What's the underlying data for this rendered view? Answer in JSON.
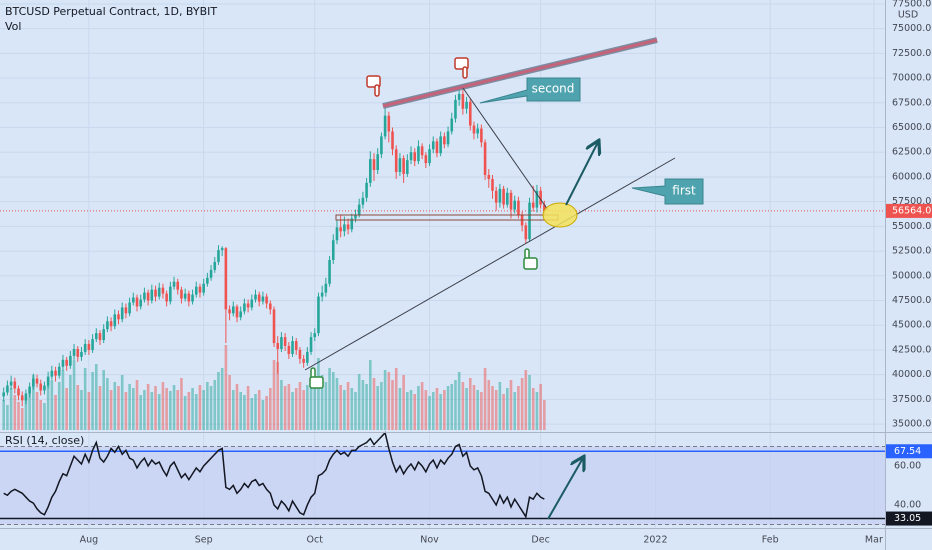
{
  "chart_data": {
    "type": "candlestick",
    "title": "BTCUSD Perpetual Contract, 1D, BYBIT",
    "unit": "USD",
    "up_color": "#26a69a",
    "down_color": "#ef5350",
    "x": [
      8,
      9,
      10,
      11,
      12,
      13,
      14,
      15,
      16,
      17,
      18,
      19,
      20,
      21,
      22,
      23,
      24,
      25,
      26,
      27,
      28,
      29,
      30,
      31,
      32,
      33,
      34,
      35,
      36,
      37,
      38,
      39,
      40,
      41,
      42,
      43,
      44,
      45,
      46,
      47,
      48,
      49,
      50,
      51,
      52,
      53,
      54,
      55,
      56,
      57,
      58,
      59,
      60,
      61,
      62,
      63,
      64,
      65,
      66,
      67,
      68,
      69,
      70,
      71,
      72,
      73,
      74,
      75,
      76,
      77,
      78,
      79,
      80,
      81,
      82,
      83,
      84,
      85,
      86,
      87,
      88,
      89,
      90,
      91,
      92,
      93,
      94,
      95,
      96,
      97,
      98,
      99,
      100,
      101,
      102,
      103,
      104,
      105,
      106,
      107,
      108,
      109,
      110,
      111,
      112,
      113,
      114,
      115,
      116,
      117,
      118,
      119,
      120,
      121,
      122,
      123,
      124,
      125,
      126,
      127,
      128,
      129,
      130,
      131,
      132,
      133,
      134,
      135,
      136,
      137,
      138,
      139,
      140,
      141,
      142,
      143,
      144,
      145,
      146,
      147,
      148,
      149,
      150,
      151,
      152,
      153,
      154
    ],
    "open": [
      37800,
      38200,
      38900,
      39300,
      38600,
      37900,
      37400,
      38100,
      38800,
      39600,
      39100,
      38400,
      38900,
      39800,
      40400,
      39900,
      40800,
      41500,
      40900,
      41900,
      42600,
      41800,
      42300,
      43100,
      42500,
      43600,
      44200,
      43500,
      44600,
      45400,
      44900,
      46100,
      45600,
      46800,
      46200,
      47300,
      47800,
      46900,
      47600,
      48300,
      47500,
      48600,
      47900,
      48800,
      48200,
      47400,
      48900,
      49400,
      48600,
      47700,
      48200,
      47400,
      48100,
      48900,
      48300,
      49200,
      49800,
      50600,
      51400,
      52600,
      52800,
      46600,
      46200,
      46900,
      45800,
      46400,
      47200,
      46800,
      47600,
      48100,
      47400,
      47900,
      47200,
      46600,
      43200,
      42600,
      43800,
      42900,
      42100,
      43400,
      42500,
      41600,
      41200,
      42300,
      43800,
      44200,
      47900,
      48300,
      49200,
      51600,
      53600,
      54900,
      54500,
      55200,
      54700,
      55800,
      56100,
      57200,
      57900,
      59400,
      61800,
      60700,
      62300,
      64100,
      66200,
      64600,
      62800,
      60500,
      61900,
      60300,
      61700,
      62500,
      61600,
      63100,
      62200,
      61400,
      62800,
      63600,
      62400,
      64100,
      63300,
      64600,
      65900,
      67800,
      68400,
      66900,
      67600,
      65200,
      64400,
      64900,
      63500,
      60200,
      59800,
      58600,
      57400,
      58800,
      57200,
      58400,
      56700,
      57600,
      56200,
      55100,
      53700,
      57400,
      56900,
      58600,
      57200
    ],
    "high": [
      38700,
      39400,
      39900,
      39700,
      38900,
      38300,
      38500,
      39200,
      40100,
      40000,
      39500,
      39300,
      40300,
      40900,
      40800,
      41200,
      42000,
      41800,
      42400,
      43100,
      42900,
      42800,
      43600,
      43500,
      44100,
      44700,
      44500,
      45100,
      45900,
      45800,
      46600,
      46500,
      47300,
      47200,
      47800,
      48300,
      48100,
      48100,
      48800,
      48600,
      49100,
      49000,
      49300,
      49200,
      48500,
      49400,
      49900,
      49700,
      48900,
      48700,
      48500,
      48600,
      49400,
      49200,
      49700,
      50300,
      51100,
      51900,
      53100,
      53000,
      52900,
      47000,
      47400,
      47100,
      46900,
      47700,
      47600,
      48100,
      48600,
      48400,
      48400,
      48200,
      47500,
      46900,
      43900,
      44300,
      44200,
      43300,
      43900,
      43700,
      42800,
      42000,
      42800,
      44300,
      44700,
      48300,
      49000,
      49800,
      52000,
      54200,
      55600,
      56200,
      56000,
      55800,
      56300,
      56700,
      57800,
      58500,
      59900,
      62600,
      62400,
      62900,
      64500,
      67000,
      66600,
      65000,
      63200,
      62400,
      62200,
      62300,
      63100,
      62900,
      63700,
      63400,
      62500,
      63300,
      64100,
      63900,
      64600,
      64500,
      65100,
      66500,
      68300,
      69000,
      68800,
      68100,
      67900,
      65600,
      65400,
      65300,
      63800,
      60800,
      60200,
      59000,
      59300,
      59100,
      58900,
      58700,
      58100,
      58000,
      56500,
      55400,
      57900,
      59100,
      59200,
      59000,
      57600
    ],
    "low": [
      37300,
      37900,
      38500,
      38100,
      37400,
      36800,
      37000,
      37700,
      38500,
      38700,
      37900,
      38000,
      38600,
      39500,
      39300,
      39600,
      40400,
      40400,
      40600,
      41500,
      41300,
      41400,
      42000,
      42000,
      42200,
      43300,
      43000,
      43200,
      44300,
      44400,
      44600,
      45100,
      45300,
      45700,
      45900,
      47000,
      46400,
      46600,
      47300,
      47000,
      47200,
      47400,
      47600,
      47700,
      46900,
      47100,
      48600,
      48100,
      47200,
      47400,
      46900,
      47100,
      47800,
      47800,
      48000,
      48900,
      49500,
      50300,
      51100,
      52000,
      43200,
      45500,
      45900,
      45300,
      45500,
      46100,
      46300,
      46500,
      47300,
      46900,
      47100,
      46700,
      46100,
      42800,
      40100,
      42300,
      42400,
      41600,
      41800,
      42000,
      41100,
      40700,
      40900,
      42000,
      43400,
      43900,
      47400,
      47900,
      48900,
      51200,
      53200,
      53900,
      54000,
      54200,
      54400,
      55400,
      55900,
      56800,
      57500,
      59000,
      59600,
      60300,
      61900,
      63800,
      63500,
      62200,
      59800,
      60100,
      59400,
      60000,
      61300,
      61100,
      61300,
      61800,
      60900,
      61100,
      62400,
      62000,
      62100,
      62900,
      63000,
      64300,
      65500,
      67200,
      66300,
      66400,
      64700,
      63800,
      63900,
      63000,
      59700,
      58900,
      57800,
      56600,
      56900,
      56800,
      56900,
      55800,
      56300,
      55800,
      54500,
      53300,
      53500,
      56500,
      56400,
      56800,
      56200
    ],
    "close": [
      38200,
      38900,
      39300,
      38600,
      37900,
      37400,
      38100,
      38800,
      39600,
      39100,
      38400,
      38900,
      39800,
      40400,
      39900,
      40800,
      41500,
      40900,
      41900,
      42600,
      41800,
      42300,
      43100,
      42500,
      43600,
      44200,
      43500,
      44600,
      45400,
      44900,
      46100,
      45600,
      46800,
      46200,
      47300,
      47800,
      46900,
      47600,
      48300,
      47500,
      48600,
      47900,
      48800,
      48200,
      47400,
      48900,
      49400,
      48600,
      47700,
      48200,
      47400,
      48100,
      48900,
      48300,
      49200,
      49800,
      50600,
      51400,
      52600,
      52800,
      46600,
      46200,
      46900,
      45800,
      46400,
      47200,
      46800,
      47600,
      48100,
      47400,
      47900,
      47200,
      46600,
      43200,
      42600,
      43800,
      42900,
      42100,
      43400,
      42500,
      41600,
      41200,
      42300,
      43800,
      44200,
      47900,
      48300,
      49200,
      51600,
      53600,
      54900,
      54500,
      55200,
      54700,
      55800,
      56100,
      57200,
      57900,
      59400,
      61800,
      60700,
      62300,
      64100,
      66200,
      64600,
      62800,
      60500,
      61900,
      60300,
      61700,
      62500,
      61600,
      63100,
      62200,
      61400,
      62800,
      63600,
      62400,
      64100,
      63300,
      64600,
      65900,
      67800,
      68400,
      66900,
      67600,
      65200,
      64400,
      64900,
      63500,
      60200,
      59800,
      58600,
      57400,
      58800,
      57200,
      58400,
      56700,
      57600,
      56200,
      55100,
      53700,
      57400,
      56900,
      58600,
      57200,
      56564
    ],
    "xlim": [
      7,
      246
    ],
    "xticks": [
      {
        "value": 31,
        "label": "Aug"
      },
      {
        "value": 62,
        "label": "Sep"
      },
      {
        "value": 92,
        "label": "Oct"
      },
      {
        "value": 123,
        "label": "Nov"
      },
      {
        "value": 153,
        "label": "Dec"
      },
      {
        "value": 184,
        "label": "2022"
      },
      {
        "value": 215,
        "label": "Feb"
      },
      {
        "value": 243,
        "label": "Mar"
      }
    ],
    "ylim": [
      34200,
      77900
    ],
    "yticks": [
      {
        "value": 35000,
        "label": "35000.0"
      },
      {
        "value": 37500,
        "label": "37500.0"
      },
      {
        "value": 40000,
        "label": "40000.0"
      },
      {
        "value": 42500,
        "label": "42500.0"
      },
      {
        "value": 45000,
        "label": "45000.0"
      },
      {
        "value": 47500,
        "label": "47500.0"
      },
      {
        "value": 50000,
        "label": "50000.0"
      },
      {
        "value": 52500,
        "label": "52500.0"
      },
      {
        "value": 55000,
        "label": "55000.0"
      },
      {
        "value": 57500,
        "label": "57500.0"
      },
      {
        "value": 60000,
        "label": "60000.0"
      },
      {
        "value": 62500,
        "label": "62500.0"
      },
      {
        "value": 65000,
        "label": "65000.0"
      },
      {
        "value": 67500,
        "label": "67500.0"
      },
      {
        "value": 70000,
        "label": "70000.0"
      },
      {
        "value": 72500,
        "label": "72500.0"
      },
      {
        "value": 75000,
        "label": "75000.0"
      },
      {
        "value": 77500,
        "label": "77500.0"
      }
    ],
    "grid": true,
    "last_price": {
      "value": 56564,
      "label": "56564.0"
    },
    "annotations": [
      "second",
      "first"
    ],
    "volume": {
      "name": "Vol",
      "values": [
        30,
        25,
        42,
        35,
        28,
        22,
        33,
        40,
        55,
        38,
        30,
        27,
        45,
        50,
        35,
        48,
        60,
        42,
        55,
        70,
        45,
        40,
        62,
        38,
        58,
        66,
        44,
        60,
        52,
        40,
        48,
        44,
        55,
        38,
        46,
        42,
        50,
        35,
        40,
        46,
        38,
        44,
        36,
        48,
        42,
        39,
        45,
        40,
        52,
        34,
        38,
        42,
        36,
        45,
        40,
        48,
        44,
        50,
        58,
        62,
        85,
        55,
        40,
        46,
        38,
        35,
        44,
        32,
        36,
        40,
        30,
        34,
        42,
        70,
        68,
        50,
        44,
        46,
        38,
        42,
        48,
        40,
        45,
        50,
        46,
        72,
        55,
        48,
        62,
        58,
        52,
        45,
        40,
        48,
        42,
        38,
        56,
        50,
        46,
        70,
        52,
        44,
        48,
        60,
        58,
        50,
        62,
        42,
        55,
        38,
        40,
        36,
        44,
        48,
        40,
        34,
        38,
        42,
        36,
        40,
        44,
        46,
        50,
        58,
        48,
        42,
        52,
        45,
        40,
        38,
        62,
        50,
        44,
        40,
        48,
        36,
        42,
        50,
        38,
        44,
        52,
        60,
        55,
        42,
        38,
        46,
        30
      ]
    },
    "rsi": {
      "name": "RSI (14, close)",
      "type": "line",
      "color": "#131722",
      "values": [
        46,
        45,
        47,
        48,
        47,
        46,
        44,
        42,
        41,
        38,
        36,
        35,
        39,
        44,
        47,
        52,
        56,
        55,
        60,
        65,
        63,
        61,
        66,
        62,
        68,
        72,
        64,
        62,
        65,
        69,
        67,
        70,
        66,
        68,
        64,
        63,
        59,
        62,
        64,
        60,
        63,
        61,
        62,
        58,
        55,
        60,
        62,
        58,
        54,
        56,
        53,
        56,
        59,
        57,
        60,
        62,
        64,
        66,
        68,
        69,
        49,
        48,
        50,
        46,
        48,
        51,
        49,
        52,
        53,
        50,
        51,
        48,
        46,
        40,
        38,
        42,
        40,
        37,
        42,
        39,
        36,
        35,
        40,
        44,
        46,
        55,
        56,
        58,
        63,
        66,
        68,
        66,
        67,
        65,
        68,
        68,
        70,
        71,
        72,
        74,
        71,
        73,
        75,
        77,
        69,
        62,
        57,
        60,
        56,
        59,
        61,
        58,
        62,
        60,
        57,
        61,
        63,
        59,
        63,
        61,
        64,
        66,
        70,
        71,
        65,
        67,
        60,
        58,
        59,
        55,
        47,
        46,
        43,
        40,
        45,
        41,
        44,
        39,
        43,
        40,
        37,
        34,
        44,
        43,
        46,
        44,
        43
      ],
      "ylim": [
        28.2,
        76.9
      ],
      "yticks": [
        {
          "value": 40,
          "label": "40.00"
        },
        {
          "value": 60,
          "label": "60.00"
        }
      ],
      "band": [
        30,
        70
      ],
      "levels": [
        {
          "value": 67.54,
          "label": "67.54",
          "color": "#2962ff"
        },
        {
          "value": 33.05,
          "label": "33.05",
          "color": "#131722"
        }
      ]
    }
  }
}
